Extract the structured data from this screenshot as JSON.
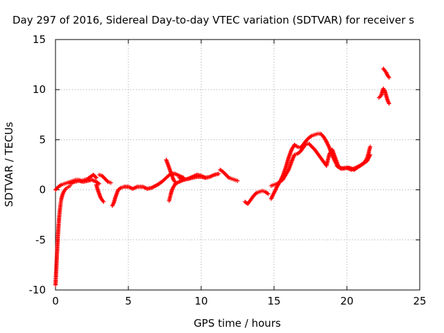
{
  "chart_data": {
    "type": "scatter",
    "title": "Day 297 of 2016, Sidereal Day-to-day VTEC variation (SDTVAR) for receiver s",
    "xlabel": "GPS time / hours",
    "ylabel": "SDTVAR / TECUs",
    "xlim": [
      0,
      25
    ],
    "ylim": [
      -10,
      15
    ],
    "xticks": [
      "0",
      "5",
      "10",
      "15",
      "20",
      "25"
    ],
    "yticks": [
      "-10",
      "-5",
      "0",
      "5",
      "10",
      "15"
    ],
    "grid": true,
    "marker": "plus",
    "color": "#ff0000",
    "series": [
      {
        "x": [
          0.0,
          0.05,
          0.1,
          0.15,
          0.2,
          0.25,
          0.3,
          0.35,
          0.4,
          0.5,
          0.6,
          0.7,
          0.8,
          0.9,
          1.0
        ],
        "y": [
          -9.5,
          -8.0,
          -6.5,
          -5.0,
          -3.8,
          -2.8,
          -2.0,
          -1.4,
          -0.9,
          -0.4,
          -0.1,
          0.1,
          0.2,
          0.3,
          0.4
        ]
      },
      {
        "x": [
          0.0,
          0.2,
          0.4,
          0.6,
          0.8,
          1.0,
          1.2,
          1.4,
          1.6,
          1.8,
          2.0,
          2.2,
          2.4,
          2.6,
          2.8
        ],
        "y": [
          0.0,
          0.3,
          0.5,
          0.6,
          0.7,
          0.8,
          0.9,
          1.0,
          1.0,
          0.9,
          1.0,
          1.1,
          1.3,
          1.5,
          1.2
        ]
      },
      {
        "x": [
          1.0,
          1.3,
          1.6,
          1.9,
          2.2,
          2.5,
          2.8,
          3.0
        ],
        "y": [
          0.6,
          0.8,
          0.9,
          0.8,
          0.9,
          1.0,
          0.8,
          0.6
        ]
      },
      {
        "x": [
          2.8,
          2.9,
          3.0,
          3.1,
          3.2,
          3.3
        ],
        "y": [
          0.5,
          0.0,
          -0.4,
          -0.8,
          -1.0,
          -1.2
        ]
      },
      {
        "x": [
          3.0,
          3.2,
          3.4,
          3.6,
          3.8
        ],
        "y": [
          1.5,
          1.4,
          1.1,
          0.8,
          0.7
        ]
      },
      {
        "x": [
          3.9,
          4.0,
          4.1,
          4.2,
          4.3,
          4.5,
          4.7,
          5.0,
          5.3,
          5.6,
          6.0,
          6.3,
          6.6,
          7.0,
          7.3,
          7.6,
          7.9,
          8.2,
          8.5,
          8.8
        ],
        "y": [
          -1.6,
          -1.3,
          -0.8,
          -0.4,
          0.0,
          0.2,
          0.3,
          0.3,
          0.1,
          0.3,
          0.3,
          0.1,
          0.2,
          0.5,
          0.8,
          1.2,
          1.6,
          1.6,
          1.4,
          1.2
        ]
      },
      {
        "x": [
          7.6,
          7.7,
          7.8,
          7.9,
          8.0,
          8.1,
          8.2
        ],
        "y": [
          3.0,
          2.6,
          2.2,
          1.8,
          1.4,
          1.0,
          0.8
        ]
      },
      {
        "x": [
          7.8,
          7.9,
          8.0,
          8.1,
          8.2
        ],
        "y": [
          -1.1,
          -0.5,
          0.0,
          0.3,
          0.5
        ]
      },
      {
        "x": [
          8.2,
          8.5,
          8.8,
          9.1,
          9.4,
          9.7,
          10.0,
          10.3,
          10.6,
          10.9,
          11.2
        ],
        "y": [
          0.6,
          0.8,
          1.0,
          1.1,
          1.2,
          1.3,
          1.3,
          1.2,
          1.3,
          1.5,
          1.6
        ]
      },
      {
        "x": [
          8.5,
          8.8,
          9.1,
          9.4,
          9.7,
          10.0,
          10.3
        ],
        "y": [
          1.2,
          1.0,
          1.1,
          1.3,
          1.5,
          1.4,
          1.2
        ]
      },
      {
        "x": [
          11.3,
          11.5,
          11.7,
          11.9,
          12.1,
          12.3,
          12.5
        ],
        "y": [
          2.0,
          1.8,
          1.5,
          1.2,
          1.1,
          1.0,
          0.9
        ]
      },
      {
        "x": [
          13.0,
          13.2,
          13.4,
          13.6,
          13.8,
          14.0,
          14.2,
          14.4,
          14.6
        ],
        "y": [
          -1.2,
          -1.4,
          -1.0,
          -0.6,
          -0.3,
          -0.2,
          -0.1,
          -0.2,
          -0.4
        ]
      },
      {
        "x": [
          14.8,
          15.0,
          15.2,
          15.4,
          15.6,
          15.8,
          16.0,
          16.2,
          16.4,
          16.6,
          16.8,
          17.0,
          17.2,
          17.4,
          17.6,
          17.8,
          18.0,
          18.2,
          18.4,
          18.6
        ],
        "y": [
          -0.9,
          -0.3,
          0.3,
          0.8,
          1.4,
          2.2,
          3.2,
          4.0,
          4.5,
          4.3,
          4.2,
          4.5,
          4.9,
          5.2,
          5.4,
          5.5,
          5.6,
          5.6,
          5.3,
          4.8
        ]
      },
      {
        "x": [
          14.8,
          15.0,
          15.2,
          15.4,
          15.6,
          15.8,
          16.0,
          16.2,
          16.4,
          16.6,
          16.8,
          17.0,
          17.2,
          17.4,
          17.6,
          17.8,
          18.0,
          18.2,
          18.4,
          18.6,
          18.8,
          19.0,
          19.2,
          19.4
        ],
        "y": [
          0.4,
          0.5,
          0.6,
          0.8,
          1.0,
          1.5,
          2.0,
          2.8,
          3.5,
          3.6,
          3.8,
          4.2,
          4.6,
          4.6,
          4.3,
          4.0,
          3.6,
          3.2,
          2.8,
          2.4,
          3.6,
          4.0,
          3.2,
          2.4
        ]
      },
      {
        "x": [
          18.6,
          18.8,
          19.0,
          19.2,
          19.4,
          19.6,
          19.8,
          20.0,
          20.3,
          20.6,
          20.9,
          21.2,
          21.4,
          21.6
        ],
        "y": [
          4.8,
          4.2,
          3.4,
          2.8,
          2.3,
          2.2,
          2.1,
          2.2,
          2.0,
          2.2,
          2.4,
          2.7,
          3.2,
          4.3
        ]
      },
      {
        "x": [
          19.3,
          19.6,
          19.9,
          20.2,
          20.5,
          20.8,
          21.1,
          21.4,
          21.6
        ],
        "y": [
          2.4,
          2.1,
          2.2,
          2.2,
          2.0,
          2.3,
          2.6,
          2.9,
          3.5
        ]
      },
      {
        "x": [
          22.5,
          22.6,
          22.7,
          22.8,
          22.9
        ],
        "y": [
          12.1,
          11.9,
          11.7,
          11.4,
          11.2
        ]
      },
      {
        "x": [
          22.2,
          22.35,
          22.5,
          22.6,
          22.7,
          22.8,
          22.9
        ],
        "y": [
          9.2,
          9.4,
          10.1,
          9.9,
          9.4,
          8.9,
          8.6
        ]
      }
    ]
  }
}
